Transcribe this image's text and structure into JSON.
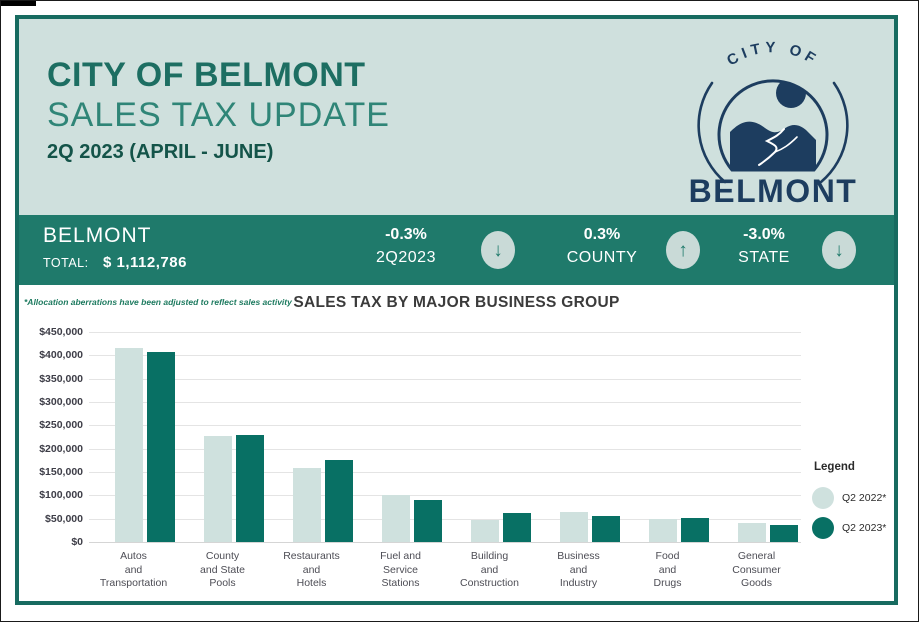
{
  "header": {
    "title": "CITY OF BELMONT",
    "subtitle": "SALES TAX UPDATE",
    "period": "2Q 2023 (APRIL - JUNE)",
    "logo": {
      "arc_text": "CITY OF",
      "name": "BELMONT"
    }
  },
  "banner": {
    "city": "BELMONT",
    "total_label": "TOTAL:",
    "total_value": "$ 1,112,786",
    "metrics": [
      {
        "value": "-0.3%",
        "label": "2Q2023",
        "direction": "down",
        "arrow": "↓"
      },
      {
        "value": "0.3%",
        "label": "COUNTY",
        "direction": "up",
        "arrow": "↑"
      },
      {
        "value": "-3.0%",
        "label": "STATE",
        "direction": "down",
        "arrow": "↓"
      }
    ]
  },
  "chart": {
    "footnote": "*Allocation aberrations have been adjusted to reflect sales activity",
    "legend_title": "Legend"
  },
  "chart_data": {
    "type": "bar",
    "title": "SALES TAX BY MAJOR BUSINESS GROUP",
    "categories": [
      "Autos\nand\nTransportation",
      "County\nand State\nPools",
      "Restaurants\nand\nHotels",
      "Fuel and\nService\nStations",
      "Building\nand\nConstruction",
      "Business\nand\nIndustry",
      "Food\nand\nDrugs",
      "General\nConsumer\nGoods"
    ],
    "series": [
      {
        "name": "Q2 2022*",
        "color": "#cfe1de",
        "values": [
          415000,
          228000,
          158000,
          100000,
          48000,
          65000,
          50000,
          40000
        ]
      },
      {
        "name": "Q2 2023*",
        "color": "#087064",
        "values": [
          408000,
          230000,
          175000,
          90000,
          62000,
          55000,
          52000,
          36000
        ]
      }
    ],
    "ylim": [
      0,
      450000
    ],
    "ytick_step": 50000,
    "ytick_format": "$#,##0",
    "grid": true,
    "legend_position": "right",
    "xlabel": "",
    "ylabel": ""
  },
  "colors": {
    "brand_teal": "#1f7a6b",
    "border_teal": "#176b60",
    "header_mint": "#cfe0dd",
    "logo_navy": "#1d3d5f",
    "bar_light": "#cfe1de",
    "bar_dark": "#087064",
    "arrow_badge_bg": "#c9dad7"
  }
}
